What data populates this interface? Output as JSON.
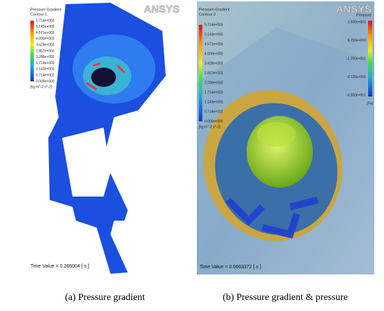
{
  "panels": [
    {
      "title": "Pressure Gradient",
      "subtitle": "Contour 1",
      "logo": "ANSYS",
      "legend": [
        "5.714e+003",
        "5.143e+003",
        "4.571e+003",
        "4.000e+003",
        "3.429e+003",
        "2.857e+003",
        "2.286e+003",
        "1.714e+003",
        "1.143e+003",
        "5.714e+002",
        "0.000e+000"
      ],
      "unit": "[kg m^-2 s^-2]",
      "time": "Time Value = 0.266004 [ s ]",
      "caption": "(a) Pressure gradient"
    },
    {
      "title": "Pressure Gradient",
      "subtitle": "Contour 3",
      "logo": "ANSYS",
      "legend": [
        "5.714e+003",
        "5.143e+003",
        "4.571e+003",
        "4.000e+003",
        "3.429e+003",
        "2.857e+003",
        "2.286e+003",
        "1.714e+003",
        "1.143e+003",
        "5.714e+002",
        "0.000e+000"
      ],
      "unit": "[kg m^-2 s^-2]",
      "second_title": "Pressure",
      "second_legend": [
        "2.500e+001",
        "6.250e+000",
        "-1.250e+001",
        "-3.125e+001",
        "-5.000e+001"
      ],
      "second_unit": "[Pa]",
      "time": "Time Value = 0.0663372 [ s ]",
      "caption": "(b) Pressure gradient & pressure"
    }
  ]
}
